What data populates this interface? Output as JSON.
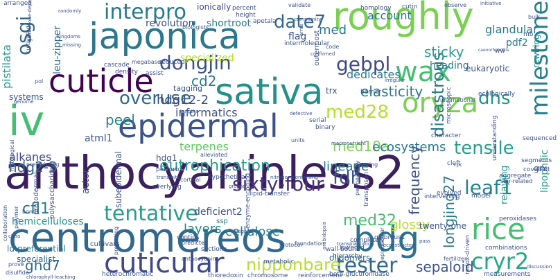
{
  "words": [
    {
      "text": "anthocyaninless2",
      "color": "#3b1f5e"
    },
    {
      "text": "centromereos",
      "color": "#31688e"
    },
    {
      "text": "japonica",
      "color": "#2a788e"
    },
    {
      "text": "roughly",
      "color": "#7ad151"
    },
    {
      "text": "sativa",
      "color": "#21918c"
    },
    {
      "text": "iv",
      "color": "#44bf70"
    },
    {
      "text": "cuticle",
      "color": "#440154"
    },
    {
      "text": "epidermal",
      "color": "#3b528b"
    },
    {
      "text": "oryza",
      "color": "#7ad151"
    },
    {
      "text": "wax",
      "color": "#44bf70"
    },
    {
      "text": "bdg",
      "color": "#2c728e"
    },
    {
      "text": "rice",
      "color": "#44bf70"
    },
    {
      "text": "cuticular",
      "color": "#3e4989"
    },
    {
      "text": "milestones",
      "color": "#277f8e"
    },
    {
      "text": "interpro",
      "color": "#2a788e"
    },
    {
      "text": "date7",
      "color": "#31688e"
    },
    {
      "text": "osgi",
      "color": "#31688e"
    },
    {
      "text": "dongjin",
      "color": "#3b528b"
    },
    {
      "text": "gebpl",
      "color": "#3e4989"
    },
    {
      "text": "overuse",
      "color": "#31688e"
    },
    {
      "text": "sixty-four",
      "color": "#46327e"
    },
    {
      "text": "tentative",
      "color": "#2a9d8e"
    },
    {
      "text": "tester",
      "color": "#31688e"
    },
    {
      "text": "cryr2",
      "color": "#22a884"
    },
    {
      "text": "med28",
      "color": "#b5de2b"
    },
    {
      "text": "dhs",
      "color": "#21918c"
    },
    {
      "text": "fdh",
      "color": "#3b528b"
    },
    {
      "text": "leaf1",
      "color": "#26828e"
    },
    {
      "text": "tensile",
      "color": "#2a9d8e"
    },
    {
      "text": "disastrous",
      "color": "#2a788e"
    },
    {
      "text": "eutrophication",
      "color": "#2a9d8e"
    },
    {
      "text": "med32",
      "color": "#44bf70"
    },
    {
      "text": "nipponbare",
      "color": "#b5de2b"
    },
    {
      "text": "sepaloid",
      "color": "#3b528b"
    },
    {
      "text": "ghd7",
      "color": "#31688e"
    },
    {
      "text": "hdg2-3",
      "color": "#31688e"
    },
    {
      "text": "med10a",
      "color": "#7ad151"
    },
    {
      "text": "longjing27",
      "color": "#2a788e"
    },
    {
      "text": "peel",
      "color": "#26828e"
    },
    {
      "text": "elasticity",
      "color": "#2a788e"
    },
    {
      "text": "sticky",
      "color": "#2a9d8e"
    },
    {
      "text": "dedicates",
      "color": "#2a788e"
    },
    {
      "text": "cd2",
      "color": "#2a788e"
    },
    {
      "text": "hdg12-2",
      "color": "#3e4989"
    },
    {
      "text": "informatics",
      "color": "#3b528b"
    },
    {
      "text": "lineage",
      "color": "#2a788e"
    },
    {
      "text": "ecosystems",
      "color": "#2a788e"
    },
    {
      "text": "terpenes",
      "color": "#5ec962"
    },
    {
      "text": "layers",
      "color": "#26828e"
    },
    {
      "text": "cellulose",
      "color": "#26828e"
    },
    {
      "text": "glossy",
      "color": "#b5de2b"
    },
    {
      "text": "cfl1",
      "color": "#2a788e"
    },
    {
      "text": "alkanes",
      "color": "#3e4989"
    },
    {
      "text": "atml1",
      "color": "#3b528b"
    },
    {
      "text": "frequency",
      "color": "#3b528b"
    },
    {
      "text": "med",
      "color": "#2a788e"
    },
    {
      "text": "account",
      "color": "#2a788e"
    },
    {
      "text": "glandular",
      "color": "#2a788e"
    },
    {
      "text": "revolution",
      "color": "#3b528b"
    },
    {
      "text": "shortroot",
      "color": "#2a788e"
    },
    {
      "text": "specialized",
      "color": "#b5de2b"
    },
    {
      "text": "flag",
      "color": "#3b528b"
    },
    {
      "text": "leu-zipper",
      "color": "#31688e"
    },
    {
      "text": "pistilata",
      "color": "#2a9d8e"
    },
    {
      "text": "systems",
      "color": "#3b528b"
    },
    {
      "text": "ionically",
      "color": "#3e4989"
    },
    {
      "text": "heading",
      "color": "#2a788e"
    },
    {
      "text": "pdf2",
      "color": "#2a788e"
    },
    {
      "text": "rewiring",
      "color": "#21918c"
    },
    {
      "text": "lipophilic",
      "color": "#2a9d8e"
    },
    {
      "text": "hemicelluloses",
      "color": "#21918c"
    },
    {
      "text": "deficient2",
      "color": "#3b528b"
    },
    {
      "text": "actor",
      "color": "#3e4989"
    },
    {
      "text": "twenty-one",
      "color": "#3b528b"
    },
    {
      "text": "relaying",
      "color": "#2a9d8e"
    },
    {
      "text": "ld-preferential",
      "color": "#2a788e"
    },
    {
      "text": "specialist",
      "color": "#31688e"
    },
    {
      "text": "ssp",
      "color": "#2a788e"
    },
    {
      "text": "grx",
      "color": "#3b528b"
    },
    {
      "text": "trx",
      "color": "#3b528b"
    },
    {
      "text": "hdg1",
      "color": "#3b528b"
    },
    {
      "text": "tagging",
      "color": "#3b528b"
    },
    {
      "text": "oligomers",
      "color": "#31688e"
    },
    {
      "text": "outermost",
      "color": "#3b528b"
    },
    {
      "text": "eukaryotic",
      "color": "#3b528b"
    },
    {
      "text": "cultivars",
      "color": "#3e4989"
    },
    {
      "text": "protodermal",
      "color": "#3b528b"
    },
    {
      "text": "subepidermal",
      "color": "#3b528b"
    },
    {
      "text": "polysaccharides",
      "color": "#3e4989"
    },
    {
      "text": "heterochromatic",
      "color": "#3b528b"
    },
    {
      "text": "chromosome",
      "color": "#3b528b"
    },
    {
      "text": "thioredoxin",
      "color": "#3b528b"
    },
    {
      "text": "reinforcement",
      "color": "#3b528b"
    },
    {
      "text": "beta-glucuronidase",
      "color": "#3b528b"
    },
    {
      "text": "measurements",
      "color": "#3b528b"
    },
    {
      "text": "redox-driven",
      "color": "#3b528b"
    },
    {
      "text": "lowered",
      "color": "#3b528b"
    },
    {
      "text": "hierarchy",
      "color": "#3b528b"
    },
    {
      "text": "metabolic",
      "color": "#3b528b"
    },
    {
      "text": "sections",
      "color": "#3b528b"
    },
    {
      "text": "combinations",
      "color": "#3b528b"
    },
    {
      "text": "aggregate",
      "color": "#3b528b"
    },
    {
      "text": "segments",
      "color": "#3b528b"
    },
    {
      "text": "covalent",
      "color": "#3b528b"
    },
    {
      "text": "peroxidases",
      "color": "#3b528b"
    },
    {
      "text": "cleft",
      "color": "#3b528b"
    },
    {
      "text": "character",
      "color": "#3b528b"
    },
    {
      "text": "mapping",
      "color": "#3b528b"
    },
    {
      "text": "transposon",
      "color": "#3b528b"
    },
    {
      "text": "intervening",
      "color": "#3b528b"
    },
    {
      "text": "evolved",
      "color": "#3b528b"
    },
    {
      "text": "model",
      "color": "#3b528b"
    },
    {
      "text": "permeability",
      "color": "#3b528b"
    },
    {
      "text": "hypothetical",
      "color": "#3b528b"
    },
    {
      "text": "lipid-transfer",
      "color": "#3b528b"
    },
    {
      "text": "cortical",
      "color": "#3b528b"
    },
    {
      "text": "overlying",
      "color": "#3b528b"
    },
    {
      "text": "perturb",
      "color": "#3b528b"
    },
    {
      "text": "alleviated",
      "color": "#3b528b"
    },
    {
      "text": "units",
      "color": "#3b528b"
    },
    {
      "text": "bonds",
      "color": "#3b528b"
    },
    {
      "text": "density",
      "color": "#3b528b"
    },
    {
      "text": "cascade",
      "color": "#3b528b"
    },
    {
      "text": "assist",
      "color": "#3b528b"
    },
    {
      "text": "serial",
      "color": "#3b528b"
    },
    {
      "text": "binary",
      "color": "#3b528b"
    },
    {
      "text": "barrier",
      "color": "#3b528b"
    },
    {
      "text": "apetala",
      "color": "#3b528b"
    },
    {
      "text": "intermolecular",
      "color": "#3b528b"
    },
    {
      "text": "code",
      "color": "#3b528b"
    },
    {
      "text": "homology",
      "color": "#3b528b"
    },
    {
      "text": "percent",
      "color": "#3b528b"
    },
    {
      "text": "height",
      "color": "#3b528b"
    },
    {
      "text": "arranged",
      "color": "#3b528b"
    },
    {
      "text": "reduced",
      "color": "#3b528b"
    },
    {
      "text": "megabases",
      "color": "#3b528b"
    },
    {
      "text": "pol",
      "color": "#3b528b"
    },
    {
      "text": "validate",
      "color": "#3b528b"
    },
    {
      "text": "cutin",
      "color": "#3b528b"
    },
    {
      "text": "observe",
      "color": "#3b528b"
    },
    {
      "text": "mb",
      "color": "#3b528b"
    },
    {
      "text": "ww",
      "color": "#3b528b"
    },
    {
      "text": "international",
      "color": "#3b528b"
    },
    {
      "text": "ecologically",
      "color": "#3b528b"
    },
    {
      "text": "microscopic",
      "color": "#3b528b"
    },
    {
      "text": "understanding",
      "color": "#3b528b"
    },
    {
      "text": "sequenced",
      "color": "#3b528b"
    },
    {
      "text": "star-related",
      "color": "#3b528b"
    },
    {
      "text": "glabrous1",
      "color": "#3b528b"
    },
    {
      "text": "completely",
      "color": "#3b528b"
    },
    {
      "text": "protecting",
      "color": "#3b528b"
    },
    {
      "text": "contigs",
      "color": "#3b528b"
    },
    {
      "text": "predicted",
      "color": "#3b528b"
    },
    {
      "text": "foundation",
      "color": "#3b528b"
    },
    {
      "text": "protocol",
      "color": "#3b528b"
    },
    {
      "text": "enzyme-encoding",
      "color": "#3b528b"
    },
    {
      "text": "wall-bound",
      "color": "#3b528b"
    },
    {
      "text": "prove",
      "color": "#3b528b"
    },
    {
      "text": "disulfide",
      "color": "#3b528b"
    },
    {
      "text": "collaboration",
      "color": "#3b528b"
    },
    {
      "text": "polymer",
      "color": "#3b528b"
    },
    {
      "text": "histological",
      "color": "#3b528b"
    },
    {
      "text": "cultivated",
      "color": "#3b528b"
    },
    {
      "text": "anthocyanin",
      "color": "#3b528b"
    },
    {
      "text": "pre-existing",
      "color": "#3b528b"
    },
    {
      "text": "fertilizer",
      "color": "#3b528b"
    },
    {
      "text": "discussion",
      "color": "#3b528b"
    },
    {
      "text": "biologists",
      "color": "#3b528b"
    },
    {
      "text": "kingdoms",
      "color": "#3b528b"
    },
    {
      "text": "missing",
      "color": "#3b528b"
    },
    {
      "text": "glutathione-dependent",
      "color": "#3b528b"
    },
    {
      "text": "randomly",
      "color": "#3b528b"
    },
    {
      "text": "community",
      "color": "#3b528b"
    },
    {
      "text": "epicuticular",
      "color": "#3b528b"
    },
    {
      "text": "macronutrient",
      "color": "#3b528b"
    },
    {
      "text": "nitrogen-containing",
      "color": "#3b528b"
    },
    {
      "text": "ground",
      "color": "#3b528b"
    },
    {
      "text": "transplantation",
      "color": "#3b528b"
    },
    {
      "text": "arabidopsis",
      "color": "#3b528b"
    },
    {
      "text": "elegans",
      "color": "#3b528b"
    },
    {
      "text": "chlorophyll-leaching",
      "color": "#3b528b"
    },
    {
      "text": "transmits",
      "color": "#3b528b"
    },
    {
      "text": "lengths",
      "color": "#3b528b"
    },
    {
      "text": "defective",
      "color": "#3b528b"
    },
    {
      "text": "genome",
      "color": "#3b528b"
    },
    {
      "text": "class",
      "color": "#3b528b"
    },
    {
      "text": "irregular",
      "color": "#3b528b"
    },
    {
      "text": "initiative",
      "color": "#3b528b"
    },
    {
      "text": "confirmed",
      "color": "#3b528b"
    },
    {
      "text": "arms",
      "color": "#3b528b"
    },
    {
      "text": "bulk",
      "color": "#3b528b"
    },
    {
      "text": "caenorhabditis",
      "color": "#3b528b"
    },
    {
      "text": "reconstructed",
      "color": "#3b528b"
    },
    {
      "text": "cpc",
      "color": "#3b528b"
    },
    {
      "text": "pass",
      "color": "#3b528b"
    }
  ]
}
